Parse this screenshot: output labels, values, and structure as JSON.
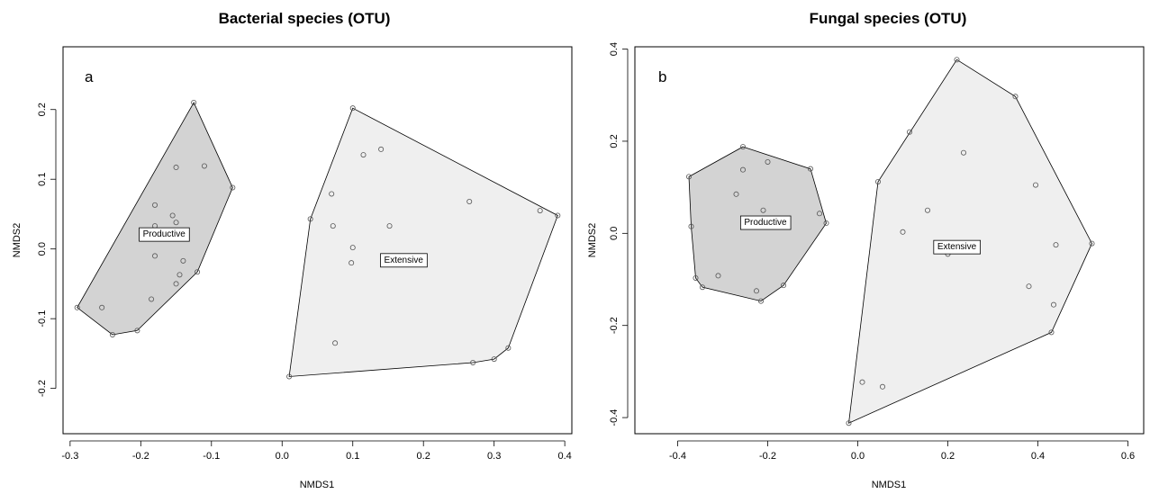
{
  "chart_data": [
    {
      "type": "scatter",
      "title": "Bacterial species (OTU)",
      "panel_label": "a",
      "xlabel": "NMDS1",
      "ylabel": "NMDS2",
      "xlim": [
        -0.31,
        0.41
      ],
      "ylim": [
        -0.265,
        0.29
      ],
      "xticks": [
        -0.3,
        -0.2,
        -0.1,
        0.0,
        0.1,
        0.2,
        0.3,
        0.4
      ],
      "xtick_labels": [
        "-0.3",
        "-0.2",
        "-0.1",
        "0.0",
        "0.1",
        "0.2",
        "0.3",
        "0.4"
      ],
      "yticks": [
        -0.2,
        -0.1,
        0.0,
        0.1,
        0.2
      ],
      "ytick_labels": [
        "-0.2",
        "-0.1",
        "0.0",
        "0.1",
        "0.2"
      ],
      "groups": [
        {
          "label": "Productive",
          "label_pos": [
            -0.167,
            0.022
          ],
          "fill": "#d3d3d3",
          "hull": [
            [
              -0.125,
              0.21
            ],
            [
              -0.07,
              0.088
            ],
            [
              -0.12,
              -0.033
            ],
            [
              -0.205,
              -0.117
            ],
            [
              -0.24,
              -0.123
            ],
            [
              -0.29,
              -0.084
            ]
          ],
          "points": [
            [
              -0.125,
              0.21
            ],
            [
              -0.07,
              0.088
            ],
            [
              -0.12,
              -0.033
            ],
            [
              -0.205,
              -0.117
            ],
            [
              -0.24,
              -0.123
            ],
            [
              -0.29,
              -0.084
            ],
            [
              -0.15,
              0.117
            ],
            [
              -0.11,
              0.119
            ],
            [
              -0.18,
              0.063
            ],
            [
              -0.155,
              0.048
            ],
            [
              -0.15,
              0.038
            ],
            [
              -0.18,
              0.033
            ],
            [
              -0.18,
              -0.01
            ],
            [
              -0.14,
              -0.017
            ],
            [
              -0.145,
              -0.037
            ],
            [
              -0.15,
              -0.05
            ],
            [
              -0.185,
              -0.072
            ],
            [
              -0.255,
              -0.084
            ]
          ]
        },
        {
          "label": "Extensive",
          "label_pos": [
            0.172,
            -0.015
          ],
          "fill": "#efefef",
          "hull": [
            [
              0.1,
              0.202
            ],
            [
              0.39,
              0.048
            ],
            [
              0.32,
              -0.142
            ],
            [
              0.3,
              -0.158
            ],
            [
              0.27,
              -0.163
            ],
            [
              0.01,
              -0.183
            ],
            [
              0.04,
              0.043
            ]
          ],
          "points": [
            [
              0.1,
              0.202
            ],
            [
              0.39,
              0.048
            ],
            [
              0.32,
              -0.142
            ],
            [
              0.3,
              -0.158
            ],
            [
              0.27,
              -0.163
            ],
            [
              0.01,
              -0.183
            ],
            [
              0.04,
              0.043
            ],
            [
              0.115,
              0.135
            ],
            [
              0.14,
              0.143
            ],
            [
              0.07,
              0.079
            ],
            [
              0.072,
              0.033
            ],
            [
              0.152,
              0.033
            ],
            [
              0.265,
              0.068
            ],
            [
              0.365,
              0.055
            ],
            [
              0.1,
              0.002
            ],
            [
              0.098,
              -0.02
            ],
            [
              0.075,
              -0.135
            ]
          ]
        }
      ]
    },
    {
      "type": "scatter",
      "title": "Fungal species (OTU)",
      "panel_label": "b",
      "xlabel": "NMDS1",
      "ylabel": "NMDS2",
      "xlim": [
        -0.495,
        0.635
      ],
      "ylim": [
        -0.435,
        0.405
      ],
      "xticks": [
        -0.4,
        -0.2,
        0.0,
        0.2,
        0.4,
        0.6
      ],
      "xtick_labels": [
        "-0.4",
        "-0.2",
        "0.0",
        "0.2",
        "0.4",
        "0.6"
      ],
      "yticks": [
        -0.4,
        -0.2,
        0.0,
        0.2,
        0.4
      ],
      "ytick_labels": [
        "-0.4",
        "-0.2",
        "0.0",
        "0.2",
        "0.4"
      ],
      "groups": [
        {
          "label": "Productive",
          "label_pos": [
            -0.205,
            0.025
          ],
          "fill": "#d3d3d3",
          "hull": [
            [
              -0.255,
              0.188
            ],
            [
              -0.105,
              0.14
            ],
            [
              -0.07,
              0.022
            ],
            [
              -0.165,
              -0.113
            ],
            [
              -0.215,
              -0.147
            ],
            [
              -0.345,
              -0.117
            ],
            [
              -0.36,
              -0.097
            ],
            [
              -0.37,
              0.015
            ],
            [
              -0.375,
              0.123
            ]
          ],
          "points": [
            [
              -0.255,
              0.188
            ],
            [
              -0.105,
              0.14
            ],
            [
              -0.07,
              0.022
            ],
            [
              -0.165,
              -0.113
            ],
            [
              -0.215,
              -0.147
            ],
            [
              -0.345,
              -0.117
            ],
            [
              -0.36,
              -0.097
            ],
            [
              -0.37,
              0.015
            ],
            [
              -0.375,
              0.123
            ],
            [
              -0.255,
              0.138
            ],
            [
              -0.2,
              0.155
            ],
            [
              -0.27,
              0.085
            ],
            [
              -0.21,
              0.05
            ],
            [
              -0.085,
              0.043
            ],
            [
              -0.31,
              -0.092
            ],
            [
              -0.225,
              -0.125
            ]
          ]
        },
        {
          "label": "Extensive",
          "label_pos": [
            0.22,
            -0.028
          ],
          "fill": "#efefef",
          "hull": [
            [
              0.22,
              0.377
            ],
            [
              0.35,
              0.297
            ],
            [
              0.52,
              -0.022
            ],
            [
              0.43,
              -0.215
            ],
            [
              -0.02,
              -0.412
            ],
            [
              0.045,
              0.112
            ]
          ],
          "points": [
            [
              0.22,
              0.377
            ],
            [
              0.35,
              0.297
            ],
            [
              0.52,
              -0.022
            ],
            [
              0.43,
              -0.215
            ],
            [
              -0.02,
              -0.412
            ],
            [
              0.045,
              0.112
            ],
            [
              0.115,
              0.22
            ],
            [
              0.235,
              0.175
            ],
            [
              0.395,
              0.105
            ],
            [
              0.155,
              0.05
            ],
            [
              0.1,
              0.003
            ],
            [
              0.2,
              -0.045
            ],
            [
              0.44,
              -0.025
            ],
            [
              0.38,
              -0.115
            ],
            [
              0.435,
              -0.155
            ],
            [
              0.01,
              -0.323
            ],
            [
              0.055,
              -0.333
            ]
          ]
        }
      ]
    }
  ]
}
